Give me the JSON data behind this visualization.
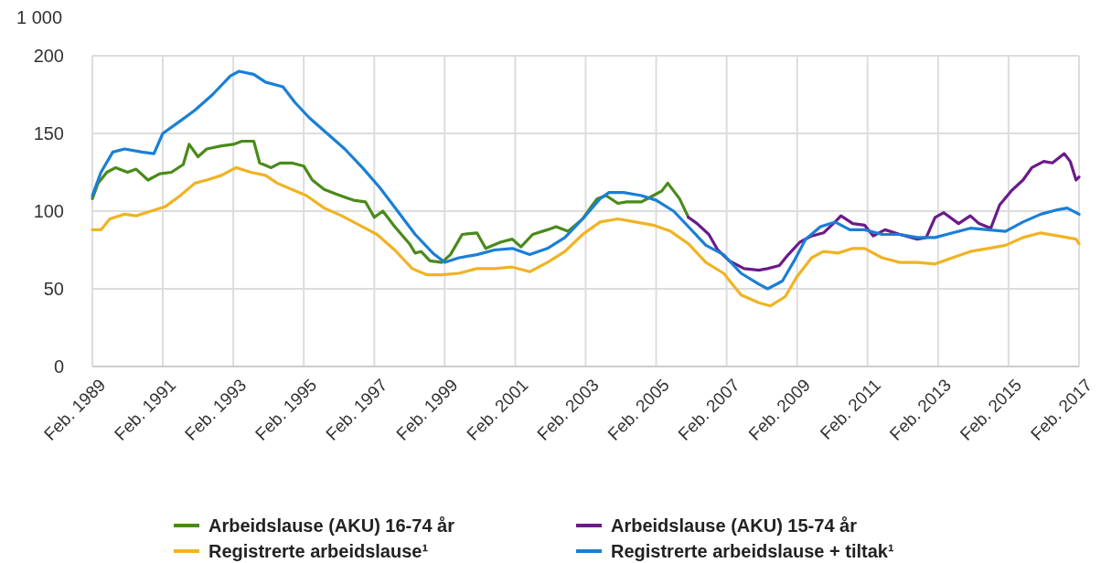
{
  "chart_data": {
    "type": "line",
    "ylabel": "1 000",
    "xlim": [
      "1989-02",
      "2017-02"
    ],
    "ylim": [
      0,
      200
    ],
    "yticks": [
      0,
      50,
      100,
      150,
      200
    ],
    "xticks": [
      {
        "value": "1989-02",
        "label": "Feb. 1989"
      },
      {
        "value": "1991-02",
        "label": "Feb. 1991"
      },
      {
        "value": "1993-02",
        "label": "Feb. 1993"
      },
      {
        "value": "1995-02",
        "label": "Feb. 1995"
      },
      {
        "value": "1997-02",
        "label": "Feb. 1997"
      },
      {
        "value": "1999-02",
        "label": "Feb. 1999"
      },
      {
        "value": "2001-02",
        "label": "Feb. 2001"
      },
      {
        "value": "2003-02",
        "label": "Feb. 2003"
      },
      {
        "value": "2005-02",
        "label": "Feb. 2005"
      },
      {
        "value": "2007-02",
        "label": "Feb. 2007"
      },
      {
        "value": "2009-02",
        "label": "Feb. 2009"
      },
      {
        "value": "2011-02",
        "label": "Feb. 2011"
      },
      {
        "value": "2013-02",
        "label": "Feb. 2013"
      },
      {
        "value": "2015-02",
        "label": "Feb. 2015"
      },
      {
        "value": "2017-02",
        "label": "Feb. 2017"
      }
    ],
    "grid": true,
    "legend": "bottom",
    "marker": "none",
    "line_style": "solid",
    "series": [
      {
        "name": "Arbeidslause (AKU) 16-74 år",
        "color": "#4a8a1a",
        "x": [
          "1989-02",
          "1989-04",
          "1989-07",
          "1989-10",
          "1990-02",
          "1990-05",
          "1990-09",
          "1991-01",
          "1991-05",
          "1991-09",
          "1991-11",
          "1992-02",
          "1992-05",
          "1992-10",
          "1993-02",
          "1993-05",
          "1993-09",
          "1993-11",
          "1994-03",
          "1994-06",
          "1994-10",
          "1995-02",
          "1995-05",
          "1995-09",
          "1996-01",
          "1996-04",
          "1996-07",
          "1996-11",
          "1997-02",
          "1997-05",
          "1997-09",
          "1998-02",
          "1998-04",
          "1998-06",
          "1998-09",
          "1999-01",
          "1999-04",
          "1999-08",
          "2000-01",
          "2000-04",
          "2000-09",
          "2001-01",
          "2001-04",
          "2001-08",
          "2002-01",
          "2002-04",
          "2002-08",
          "2003-01",
          "2003-04",
          "2003-06",
          "2003-09",
          "2004-01",
          "2004-04",
          "2004-09",
          "2005-01",
          "2005-04",
          "2005-06",
          "2005-10",
          "2006-01"
        ],
        "values": [
          108,
          118,
          125,
          128,
          125,
          127,
          120,
          124,
          125,
          130,
          143,
          135,
          140,
          142,
          143,
          145,
          145,
          131,
          128,
          131,
          131,
          129,
          120,
          114,
          111,
          109,
          107,
          106,
          96,
          100,
          90,
          79,
          73,
          74,
          68,
          67,
          72,
          85,
          86,
          76,
          80,
          82,
          77,
          85,
          88,
          90,
          87,
          95,
          103,
          108,
          110,
          105,
          106,
          106,
          110,
          113,
          118,
          108,
          96
        ]
      },
      {
        "name": "Arbeidslause (AKU) 15-74 år",
        "color": "#6a1b8a",
        "x": [
          "2006-01",
          "2006-04",
          "2006-08",
          "2006-11",
          "2007-03",
          "2007-08",
          "2008-01",
          "2008-04",
          "2008-08",
          "2008-11",
          "2009-03",
          "2009-07",
          "2009-11",
          "2010-03",
          "2010-05",
          "2010-09",
          "2011-01",
          "2011-04",
          "2011-08",
          "2012-01",
          "2012-07",
          "2012-10",
          "2013-01",
          "2013-04",
          "2013-09",
          "2014-01",
          "2014-04",
          "2014-08",
          "2014-11",
          "2015-03",
          "2015-07",
          "2015-10",
          "2016-02",
          "2016-05",
          "2016-09",
          "2016-11",
          "2017-01",
          "2017-02"
        ],
        "values": [
          96,
          92,
          85,
          75,
          68,
          63,
          62,
          63,
          65,
          72,
          80,
          84,
          86,
          93,
          97,
          92,
          91,
          84,
          88,
          85,
          82,
          83,
          96,
          99,
          92,
          97,
          92,
          89,
          104,
          113,
          120,
          128,
          132,
          131,
          137,
          132,
          120,
          122
        ]
      },
      {
        "name": "Registrerte arbeidslause¹",
        "color": "#f0b323",
        "x": [
          "1989-02",
          "1989-05",
          "1989-08",
          "1990-01",
          "1990-05",
          "1990-10",
          "1991-03",
          "1991-08",
          "1992-01",
          "1992-05",
          "1992-10",
          "1993-03",
          "1993-08",
          "1994-01",
          "1994-05",
          "1994-10",
          "1995-03",
          "1995-09",
          "1996-03",
          "1996-09",
          "1997-03",
          "1997-09",
          "1998-03",
          "1998-08",
          "1999-01",
          "1999-07",
          "2000-01",
          "2000-07",
          "2001-01",
          "2001-07",
          "2002-01",
          "2002-07",
          "2003-01",
          "2003-07",
          "2004-01",
          "2004-07",
          "2005-01",
          "2005-07",
          "2006-01",
          "2006-07",
          "2007-01",
          "2007-07",
          "2008-01",
          "2008-05",
          "2008-10",
          "2009-02",
          "2009-07",
          "2009-11",
          "2010-04",
          "2010-09",
          "2011-01",
          "2011-07",
          "2012-01",
          "2012-07",
          "2013-01",
          "2013-07",
          "2014-01",
          "2014-07",
          "2015-01",
          "2015-07",
          "2016-01",
          "2016-07",
          "2017-01",
          "2017-02"
        ],
        "values": [
          88,
          88,
          95,
          98,
          97,
          100,
          103,
          110,
          118,
          120,
          123,
          128,
          125,
          123,
          118,
          114,
          110,
          102,
          97,
          91,
          85,
          75,
          63,
          59,
          59,
          60,
          63,
          63,
          64,
          61,
          67,
          74,
          85,
          93,
          95,
          93,
          91,
          87,
          79,
          67,
          60,
          46,
          41,
          39,
          45,
          58,
          70,
          74,
          73,
          76,
          76,
          70,
          67,
          67,
          66,
          70,
          74,
          76,
          78,
          83,
          86,
          84,
          82,
          79
        ]
      },
      {
        "name": "Registrerte arbeidslause + tiltak¹",
        "color": "#1a7fd6",
        "x": [
          "1989-02",
          "1989-05",
          "1989-09",
          "1990-01",
          "1990-07",
          "1990-11",
          "1991-02",
          "1991-08",
          "1992-01",
          "1992-07",
          "1993-01",
          "1993-04",
          "1993-09",
          "1994-01",
          "1994-07",
          "1994-11",
          "1995-04",
          "1995-10",
          "1996-04",
          "1996-10",
          "1997-04",
          "1997-10",
          "1998-04",
          "1998-10",
          "1999-02",
          "1999-07",
          "2000-01",
          "2000-07",
          "2001-01",
          "2001-07",
          "2002-01",
          "2002-07",
          "2003-01",
          "2003-07",
          "2003-10",
          "2004-03",
          "2004-09",
          "2005-02",
          "2005-08",
          "2006-01",
          "2006-07",
          "2007-01",
          "2007-07",
          "2008-01",
          "2008-04",
          "2008-09",
          "2009-01",
          "2009-05",
          "2009-10",
          "2010-03",
          "2010-08",
          "2011-01",
          "2011-07",
          "2012-01",
          "2012-07",
          "2013-01",
          "2013-07",
          "2014-01",
          "2014-07",
          "2015-01",
          "2015-07",
          "2016-01",
          "2016-07",
          "2016-10",
          "2017-02"
        ],
        "values": [
          110,
          125,
          138,
          140,
          138,
          137,
          150,
          158,
          165,
          175,
          187,
          190,
          188,
          183,
          180,
          170,
          160,
          150,
          140,
          128,
          115,
          100,
          85,
          73,
          67,
          70,
          72,
          75,
          76,
          72,
          76,
          83,
          95,
          108,
          112,
          112,
          110,
          107,
          100,
          90,
          78,
          72,
          60,
          53,
          50,
          55,
          68,
          82,
          90,
          93,
          88,
          88,
          85,
          85,
          83,
          83,
          86,
          89,
          88,
          87,
          93,
          98,
          101,
          102,
          98
        ]
      }
    ]
  }
}
